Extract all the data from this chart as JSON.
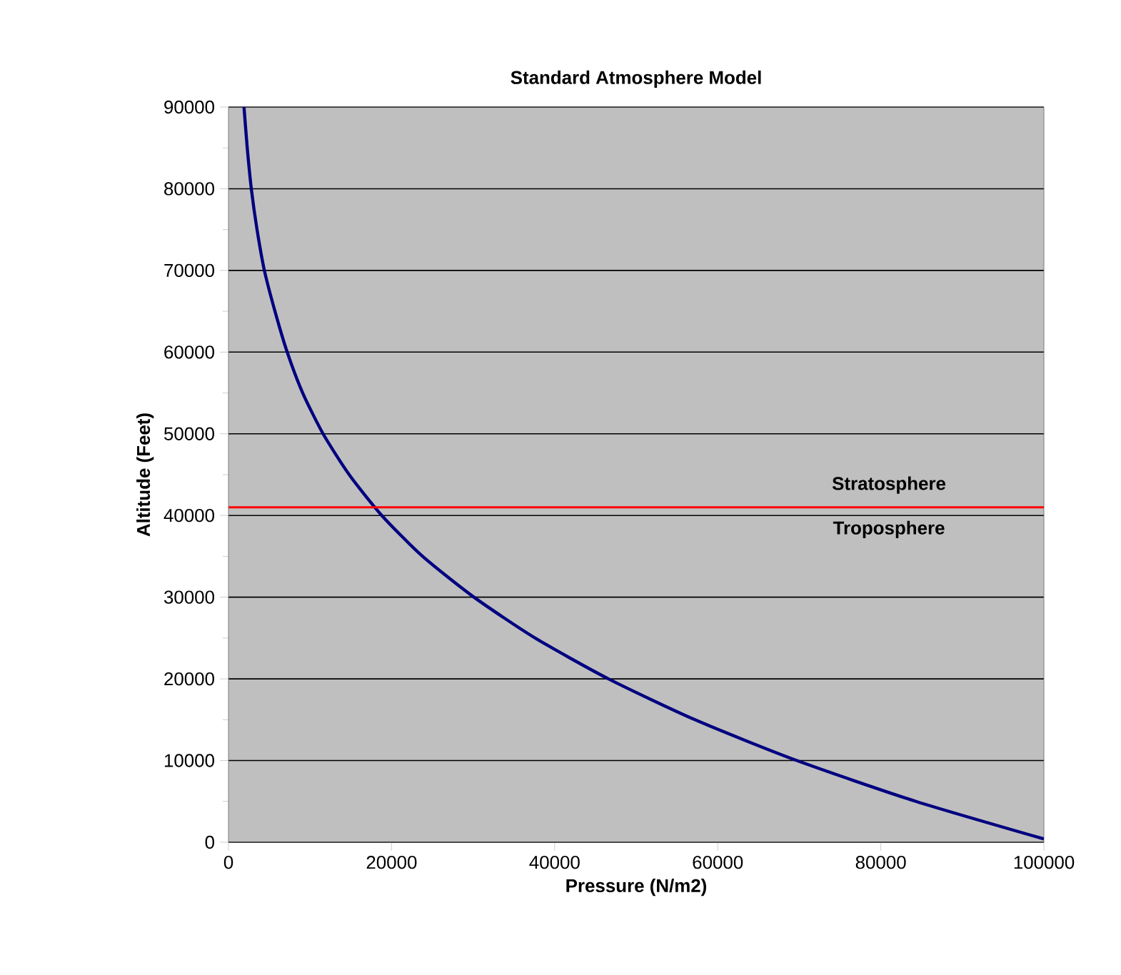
{
  "chart_data": {
    "type": "line",
    "title": "Standard Atmosphere Model",
    "xlabel": "Pressure (N/m2)",
    "ylabel": "Altitude (Feet)",
    "series": [
      {
        "color": "#000080",
        "x": [
          1900,
          2300,
          2800,
          3500,
          4400,
          5700,
          7200,
          9100,
          11600,
          14800,
          18800,
          23800,
          30100,
          37600,
          46600,
          57200,
          69700,
          84300,
          100000
        ],
        "values": [
          90000,
          85000,
          80000,
          75000,
          70000,
          65000,
          60000,
          55000,
          50000,
          45000,
          40000,
          35000,
          30000,
          25000,
          20000,
          15000,
          10000,
          5000,
          400
        ]
      }
    ],
    "xlim": [
      0,
      100000
    ],
    "ylim": [
      0,
      90000
    ],
    "xticks": [
      0,
      20000,
      40000,
      60000,
      80000,
      100000
    ],
    "yticks": [
      0,
      {
        "value": 5000,
        "label": null
      },
      10000,
      {
        "value": 15000,
        "label": null
      },
      20000,
      {
        "value": 25000,
        "label": null
      },
      30000,
      {
        "value": 35000,
        "label": null
      },
      40000,
      {
        "value": 45000,
        "label": null
      },
      50000,
      {
        "value": 55000,
        "label": null
      },
      60000,
      {
        "value": 65000,
        "label": null
      },
      70000,
      {
        "value": 75000,
        "label": null
      },
      80000,
      {
        "value": 85000,
        "label": null
      },
      90000
    ],
    "grid": "y",
    "marker": "none",
    "line_style": "solid",
    "ref_lines": [
      {
        "axis": "y",
        "value": 41000,
        "color": "#ff0000"
      }
    ],
    "annotations": [
      "Stratosphere",
      "Troposphere"
    ]
  }
}
